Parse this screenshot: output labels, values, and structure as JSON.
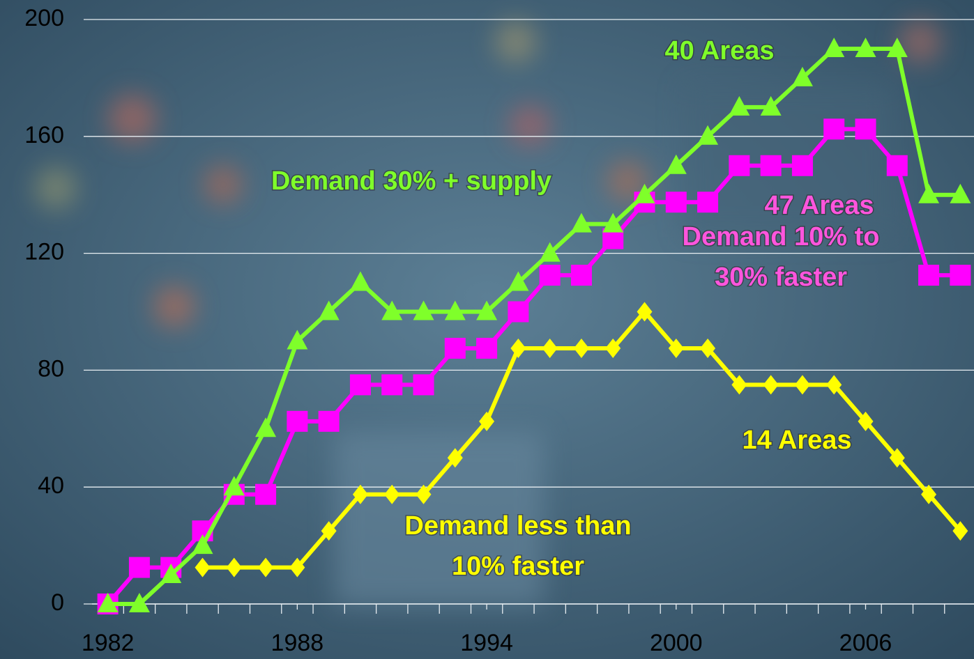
{
  "chart_data": {
    "type": "line",
    "x": [
      1982,
      1983,
      1984,
      1985,
      1986,
      1987,
      1988,
      1989,
      1990,
      1991,
      1992,
      1993,
      1994,
      1995,
      1996,
      1997,
      1998,
      1999,
      2000,
      2001,
      2002,
      2003,
      2004,
      2005,
      2006,
      2007,
      2008,
      2009
    ],
    "xlim": [
      1981.5,
      2009.5
    ],
    "xticks": [
      1982,
      1988,
      1994,
      2000,
      2006
    ],
    "ylim": [
      0,
      200
    ],
    "yticks": [
      0,
      40,
      80,
      120,
      160,
      200
    ],
    "grid": true,
    "series": [
      {
        "name": "40 Areas",
        "color": "#7fff2a",
        "marker": "triangle",
        "values": [
          0,
          0,
          10,
          20,
          40,
          60,
          90,
          100,
          110,
          100,
          100,
          100,
          100,
          110,
          120,
          130,
          130,
          140,
          150,
          160,
          170,
          170,
          180,
          190,
          190,
          190,
          140,
          140
        ]
      },
      {
        "name": "47 Areas",
        "color": "#ff00ff",
        "marker": "square",
        "values": [
          0,
          12.5,
          12.5,
          25,
          37.5,
          37.5,
          62.5,
          62.5,
          75,
          75,
          75,
          87.5,
          87.5,
          100,
          112.5,
          112.5,
          125,
          137.5,
          137.5,
          137.5,
          150,
          150,
          150,
          162.5,
          162.5,
          150,
          112.5,
          112.5
        ]
      },
      {
        "name": "14 Areas",
        "color": "#ffff00",
        "marker": "diamond",
        "values": [
          null,
          null,
          null,
          12.5,
          12.5,
          12.5,
          12.5,
          25,
          37.5,
          37.5,
          37.5,
          50,
          62.5,
          87.5,
          87.5,
          87.5,
          87.5,
          100,
          87.5,
          87.5,
          75,
          75,
          75,
          75,
          62.5,
          50,
          37.5,
          25
        ]
      }
    ],
    "annotations": [
      {
        "lines": [
          "Demand  30% + supply"
        ],
        "color": "#7fff2a"
      },
      {
        "lines": [
          "Demand 10% to",
          "30% faster"
        ],
        "color": "#ff55dd"
      },
      {
        "lines": [
          "Demand less than",
          "10% faster"
        ],
        "color": "#ffff00"
      }
    ]
  }
}
